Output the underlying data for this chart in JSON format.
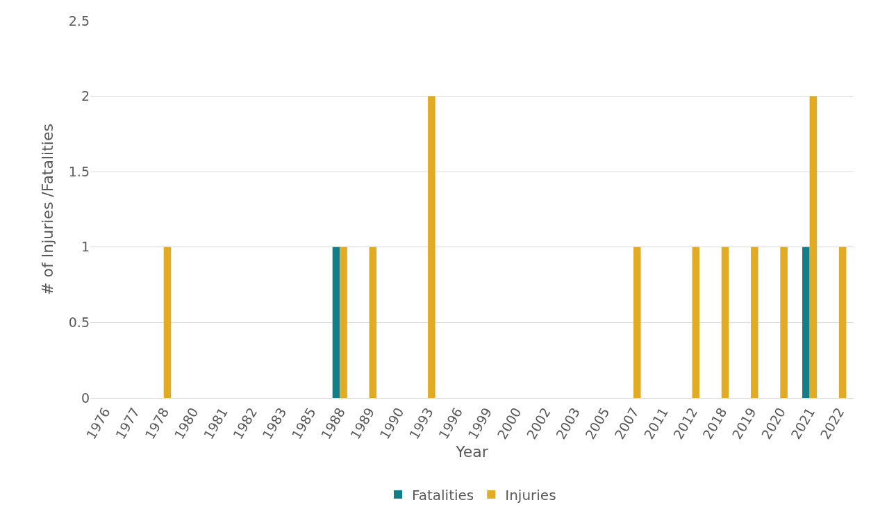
{
  "chart_data": {
    "type": "bar",
    "xlabel": "Year",
    "ylabel": "# of Injuries /Fatalities",
    "categories": [
      "1976",
      "1977",
      "1978",
      "1980",
      "1981",
      "1982",
      "1983",
      "1985",
      "1988",
      "1989",
      "1990",
      "1993",
      "1996",
      "1999",
      "2000",
      "2002",
      "2003",
      "2005",
      "2007",
      "2011",
      "2012",
      "2018",
      "2019",
      "2020",
      "2021",
      "2022"
    ],
    "series": [
      {
        "name": "Fatalities",
        "color": "#137d89",
        "values": [
          0,
          0,
          0,
          0,
          0,
          0,
          0,
          0,
          1,
          0,
          0,
          0,
          0,
          0,
          0,
          0,
          0,
          0,
          0,
          0,
          0,
          0,
          0,
          0,
          1,
          0
        ]
      },
      {
        "name": "Injuries",
        "color": "#e2ab24",
        "values": [
          0,
          0,
          1,
          0,
          0,
          0,
          0,
          0,
          1,
          1,
          0,
          2,
          0,
          0,
          0,
          0,
          0,
          0,
          1,
          0,
          1,
          1,
          1,
          1,
          2,
          1
        ]
      }
    ],
    "ylim": [
      0,
      2.5
    ],
    "yticks": [
      0,
      0.5,
      1,
      1.5,
      2,
      2.5
    ],
    "grid": "y",
    "legend": "bottom"
  }
}
